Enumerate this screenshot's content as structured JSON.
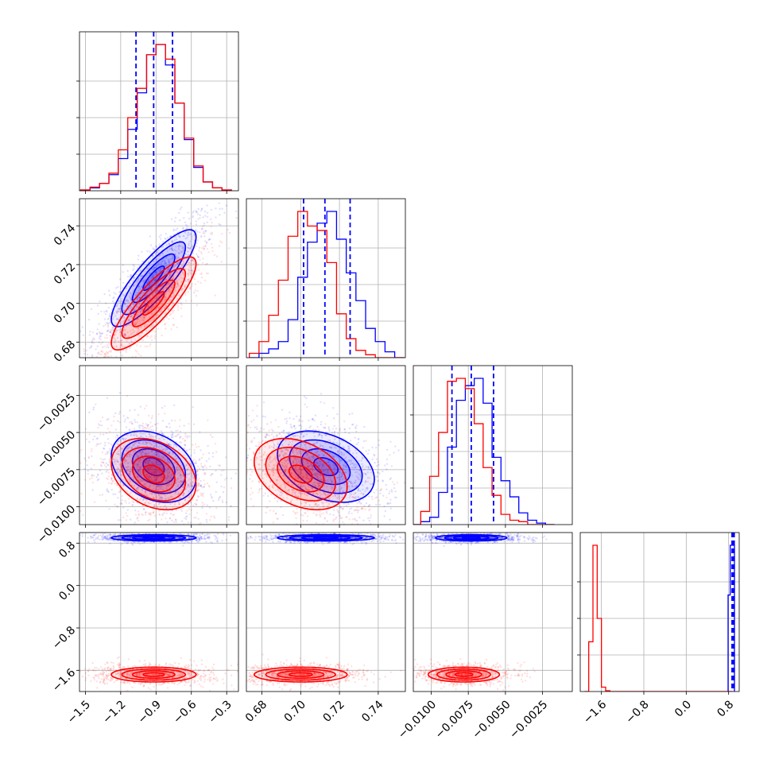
{
  "chart_data": {
    "type": "corner",
    "title": "",
    "grid": true,
    "colors": {
      "blue": "#0000ff",
      "red": "#ff0000",
      "grid": "#b0b0b0"
    },
    "params": [
      {
        "range": [
          -1.55,
          -0.2
        ],
        "ticks": [
          -1.5,
          -1.2,
          -0.9,
          -0.6,
          -0.3
        ],
        "tick_labels": [
          "−1.5",
          "−1.2",
          "−0.9",
          "−0.6",
          "−0.3"
        ]
      },
      {
        "range": [
          0.672,
          0.754
        ],
        "ticks": [
          0.68,
          0.7,
          0.72,
          0.74
        ],
        "tick_labels": [
          "0.68",
          "0.70",
          "0.72",
          "0.74"
        ]
      },
      {
        "range": [
          -0.0112,
          -0.0005
        ],
        "ticks": [
          -0.01,
          -0.0075,
          -0.005,
          -0.0025
        ],
        "tick_labels": [
          "−0.0100",
          "−0.0075",
          "−0.0050",
          "−0.0025"
        ]
      },
      {
        "range": [
          -2.0,
          1.0
        ],
        "ticks": [
          -1.6,
          -0.8,
          0.0,
          0.8
        ],
        "tick_labels": [
          "−1.6",
          "−0.8",
          "0.0",
          "0.8"
        ]
      }
    ],
    "series": [
      {
        "color": "#0000ff",
        "mean": [
          -0.92,
          0.713,
          -0.0073,
          0.9
        ],
        "sd": [
          0.18,
          0.0125,
          0.0012,
          0.03
        ],
        "hist": [
          {
            "x": [
              -1.5,
              -1.42,
              -1.34,
              -1.26,
              -1.18,
              -1.1,
              -1.02,
              -0.94,
              -0.86,
              -0.78,
              -0.7,
              -0.62,
              -0.54,
              -0.46,
              -0.38,
              -0.3
            ],
            "y": [
              0.005,
              0.02,
              0.05,
              0.11,
              0.22,
              0.42,
              0.67,
              0.93,
              1.0,
              0.86,
              0.6,
              0.35,
              0.16,
              0.06,
              0.02,
              0.005
            ]
          },
          {
            "x": [
              0.676,
              0.681,
              0.686,
              0.691,
              0.696,
              0.701,
              0.706,
              0.711,
              0.716,
              0.721,
              0.726,
              0.731,
              0.736,
              0.741,
              0.746,
              0.751
            ],
            "y": [
              0.0,
              0.03,
              0.06,
              0.11,
              0.26,
              0.55,
              0.79,
              0.92,
              1.0,
              0.81,
              0.58,
              0.39,
              0.2,
              0.11,
              0.04,
              0.0
            ]
          },
          {
            "x": [
              -0.011,
              -0.0104,
              -0.0098,
              -0.0092,
              -0.0086,
              -0.008,
              -0.0074,
              -0.0068,
              -0.0062,
              -0.0056,
              -0.005,
              -0.0044,
              -0.0038,
              -0.0032,
              -0.0026,
              -0.002
            ],
            "y": [
              0.0,
              0.02,
              0.05,
              0.22,
              0.53,
              0.85,
              0.95,
              1.0,
              0.83,
              0.46,
              0.3,
              0.19,
              0.08,
              0.03,
              0.01,
              0.0
            ]
          },
          {
            "x": [
              0.81,
              0.85,
              0.89
            ],
            "y": [
              0.66,
              1.0,
              1.0
            ]
          }
        ],
        "quantile_lines": [
          [
            -1.07,
            -0.92,
            -0.76
          ],
          [
            0.7015,
            0.7125,
            0.7255
          ],
          [
            -0.0086,
            -0.0073,
            -0.0058
          ],
          [
            0.865,
            0.885,
            0.905
          ]
        ]
      },
      {
        "color": "#ff0000",
        "mean": [
          -0.92,
          0.7,
          -0.0078,
          -1.68
        ],
        "sd": [
          0.18,
          0.012,
          0.0012,
          0.07
        ],
        "hist": [
          {
            "x": [
              -1.5,
              -1.42,
              -1.34,
              -1.26,
              -1.18,
              -1.1,
              -1.02,
              -0.94,
              -0.86,
              -0.78,
              -0.7,
              -0.62,
              -0.54,
              -0.46,
              -0.38,
              -0.3
            ],
            "y": [
              0.005,
              0.025,
              0.05,
              0.12,
              0.28,
              0.5,
              0.7,
              0.93,
              1.0,
              0.9,
              0.6,
              0.36,
              0.17,
              0.06,
              0.02,
              0.005
            ]
          },
          {
            "x": [
              0.676,
              0.681,
              0.686,
              0.691,
              0.696,
              0.701,
              0.706,
              0.711,
              0.716,
              0.721,
              0.726,
              0.731,
              0.736,
              0.741,
              0.746,
              0.751
            ],
            "y": [
              0.03,
              0.11,
              0.29,
              0.53,
              0.83,
              1.0,
              0.9,
              0.87,
              0.65,
              0.3,
              0.13,
              0.05,
              0.02,
              0.0,
              0.0,
              0.0
            ]
          },
          {
            "x": [
              -0.011,
              -0.0104,
              -0.0098,
              -0.0092,
              -0.0086,
              -0.008,
              -0.0074,
              -0.0068,
              -0.0062,
              -0.0056,
              -0.005,
              -0.0044,
              -0.0038,
              -0.0032,
              -0.0026,
              -0.002
            ],
            "y": [
              0.0,
              0.09,
              0.33,
              0.63,
              0.98,
              1.0,
              0.93,
              0.69,
              0.39,
              0.2,
              0.07,
              0.03,
              0.02,
              0.0,
              0.0,
              0.0
            ]
          },
          {
            "x": [
              -1.88,
              -1.8,
              -1.72,
              -1.64,
              -1.56,
              -1.48,
              -1.4,
              -1.32,
              -1.24,
              -1.16,
              -1.08,
              -1.0,
              -0.92,
              -0.84,
              -0.76,
              -0.68,
              -0.6,
              -0.52,
              -0.44,
              -0.36,
              -0.28,
              -0.2,
              -0.12,
              -0.04,
              0.04,
              0.12,
              0.2,
              0.28,
              0.36,
              0.44,
              0.52,
              0.6,
              0.68,
              0.76,
              0.84
            ],
            "y": [
              0.0,
              0.34,
              1.0,
              0.5,
              0.03,
              0.005,
              0,
              0,
              0,
              0,
              0,
              0,
              0,
              0,
              0,
              0,
              0,
              0,
              0,
              0,
              0,
              0,
              0,
              0,
              0,
              0,
              0,
              0,
              0,
              0,
              0,
              0,
              0,
              0,
              0
            ]
          }
        ],
        "quantile_lines": []
      }
    ],
    "correlations": {
      "0-1": 0.85,
      "0-2": -0.3,
      "1-2": -0.35,
      "0-3": 0.0,
      "1-3": 0.0,
      "2-3": 0.0
    }
  }
}
